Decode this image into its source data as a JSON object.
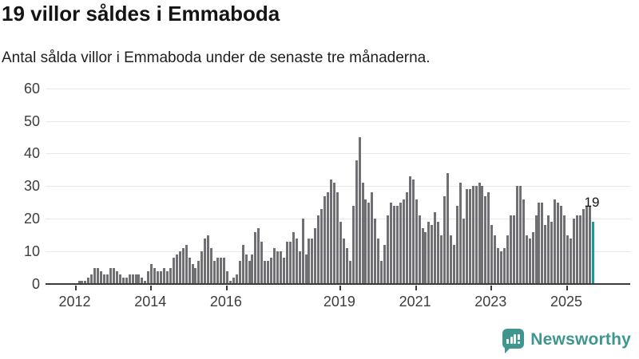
{
  "header": {
    "title": "19 villor såldes i Emmaboda",
    "subtitle": "Antal sålda villor i Emmaboda under de senaste tre månaderna."
  },
  "chart_data": {
    "type": "bar",
    "title": "19 villor såldes i Emmaboda",
    "ylabel": "Antal sålda villor",
    "ylim": [
      0,
      60
    ],
    "grid": true,
    "y_ticks": [
      0,
      10,
      20,
      30,
      40,
      50,
      60
    ],
    "x_tick_years": [
      2012,
      2014,
      2016,
      2019,
      2021,
      2023,
      2025
    ],
    "frequency": "monthly",
    "values": [
      1,
      1,
      1,
      2,
      3,
      5,
      5,
      4,
      3,
      3,
      5,
      5,
      4,
      3,
      2,
      2,
      3,
      3,
      3,
      3,
      2,
      1,
      4,
      6,
      5,
      4,
      4,
      5,
      4,
      5,
      8,
      9,
      10,
      11,
      12,
      8,
      6,
      5,
      7,
      10,
      14,
      15,
      11,
      7,
      8,
      8,
      8,
      4,
      1,
      2,
      3,
      7,
      12,
      9,
      7,
      9,
      16,
      17,
      13,
      7,
      7,
      8,
      11,
      10,
      10,
      8,
      13,
      13,
      16,
      14,
      10,
      20,
      9,
      14,
      14,
      17,
      21,
      23,
      27,
      28,
      32,
      31,
      28,
      19,
      14,
      11,
      7,
      24,
      38,
      45,
      31,
      26,
      25,
      28,
      20,
      14,
      7,
      12,
      21,
      25,
      24,
      24,
      25,
      26,
      28,
      33,
      32,
      26,
      21,
      17,
      16,
      19,
      18,
      22,
      19,
      15,
      27,
      34,
      15,
      12,
      24,
      31,
      20,
      29,
      29,
      30,
      30,
      31,
      30,
      27,
      28,
      18,
      15,
      11,
      10,
      11,
      15,
      21,
      21,
      30,
      30,
      26,
      15,
      14,
      16,
      21,
      25,
      25,
      18,
      21,
      19,
      26,
      25,
      24,
      21,
      15,
      14,
      20,
      21,
      21,
      23,
      24,
      24,
      19
    ],
    "highlight_last_bar": true,
    "last_value": 19,
    "last_value_label": "19",
    "colors": {
      "bar": "#706f74",
      "highlight": "#0f9f9f",
      "grid": "#e8e8e8",
      "axis": "#3b3b3b",
      "text": "#3d3d3d"
    },
    "legend": null
  },
  "footer": {
    "brand": "Newsworthy",
    "brand_color": "#3f968e"
  }
}
